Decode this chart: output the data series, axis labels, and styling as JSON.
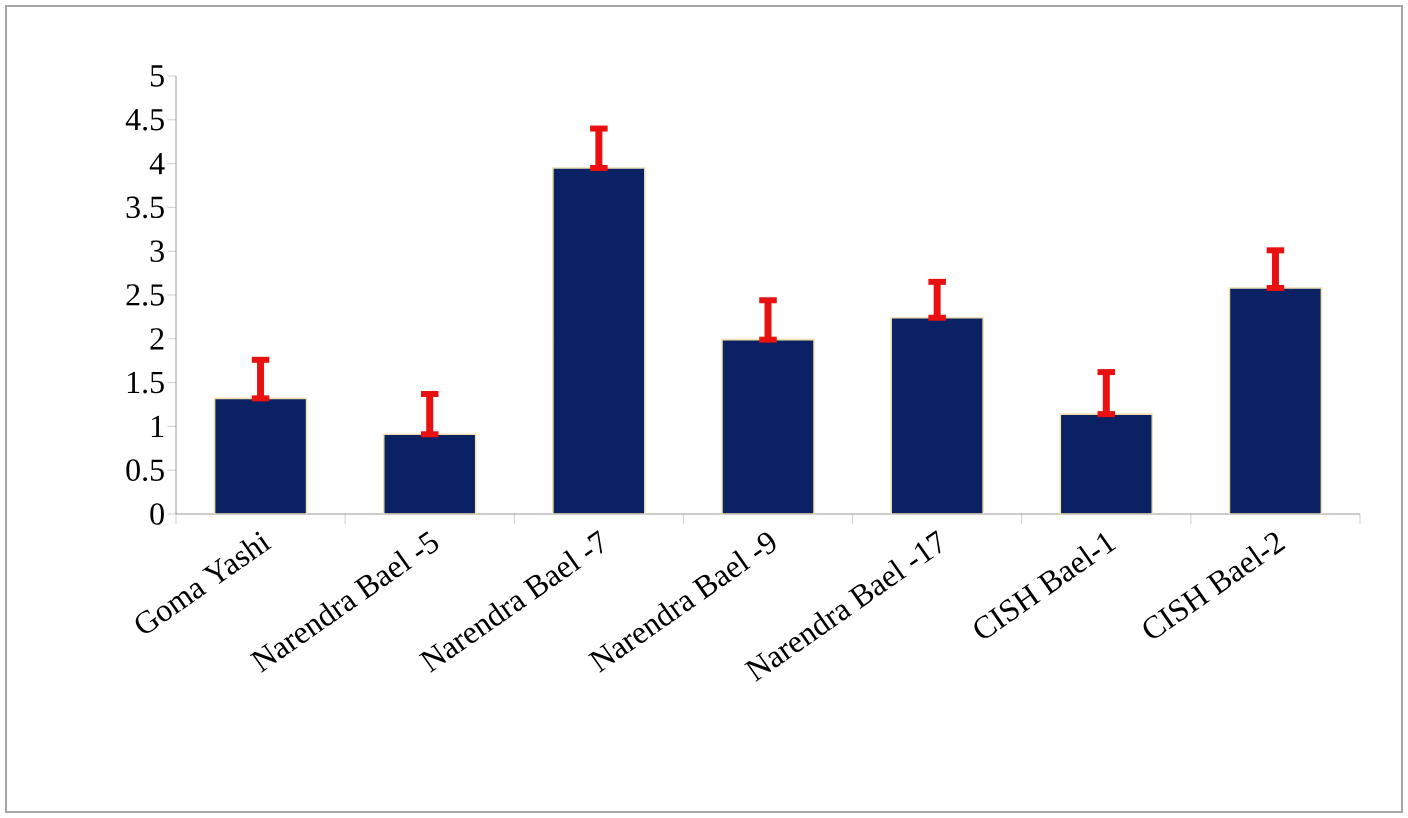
{
  "chart_data": {
    "type": "bar",
    "categories": [
      "Goma Yashi",
      "Narendra Bael -5",
      "Narendra Bael -7",
      "Narendra Bael -9",
      "Narendra Bael -17",
      "CISH Bael-1",
      "CISH Bael-2"
    ],
    "values": [
      1.32,
      0.91,
      3.95,
      1.99,
      2.24,
      1.14,
      2.58
    ],
    "errors": [
      [
        1.32,
        1.76
      ],
      [
        0.91,
        1.37
      ],
      [
        3.95,
        4.4
      ],
      [
        1.99,
        2.44
      ],
      [
        2.24,
        2.65
      ],
      [
        1.14,
        1.62
      ],
      [
        2.58,
        3.01
      ]
    ],
    "color": "#0a2163",
    "ylim": [
      0,
      5
    ],
    "yticks": [
      0,
      0.5,
      1,
      1.5,
      2,
      2.5,
      3,
      3.5,
      4,
      4.5,
      5
    ],
    "grid": false
  }
}
